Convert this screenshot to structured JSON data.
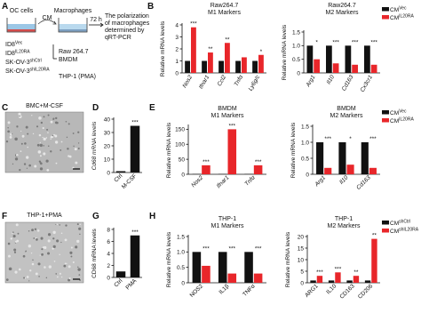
{
  "panel_labels": [
    "A",
    "B",
    "C",
    "D",
    "E",
    "F",
    "G",
    "H"
  ],
  "diagram": {
    "oc_cells": "OC cells",
    "cm": "CM",
    "macrophages": "Macrophages",
    "time": "72 h",
    "result_lines": [
      "The polarization",
      "of macrophages",
      "determined by",
      "qRT-PCR"
    ],
    "cell_lines": [
      {
        "base": "ID8",
        "sup": "Vec"
      },
      {
        "base": "ID8",
        "sup": "IL20RA"
      },
      {
        "base": "SK-OV-3",
        "sup": "shCtrl"
      },
      {
        "base": "SK-OV-3",
        "sup": "shIL20RA"
      }
    ],
    "macrophage_lines": [
      "Raw 264.7",
      "BMDM",
      "THP-1 (PMA)"
    ]
  },
  "images": [
    {
      "title": "BMC+M-CSF"
    },
    {
      "title": "THP-1+PMA"
    }
  ],
  "chart_data": [
    {
      "type": "bar",
      "title": "Raw264.7",
      "subtitle": "M1 Markers",
      "y_label": "Relative mRNA levels",
      "categories": [
        "Nos2",
        "Ifnar1",
        "Ccl2",
        "Tnfα",
        "Ly6g/c"
      ],
      "series": [
        {
          "name": "CM",
          "name_sup": "Vec",
          "color": "#111111",
          "values": [
            1,
            1,
            1,
            1,
            1
          ]
        },
        {
          "name": "CM",
          "name_sup": "IL20RA",
          "color": "#e8262a",
          "values": [
            3.8,
            1.7,
            2.5,
            1.3,
            1.5
          ]
        }
      ],
      "annotations": [
        "***",
        "**",
        "**",
        null,
        "*"
      ],
      "ylim": [
        0,
        4
      ],
      "yticks": [
        0,
        1,
        2,
        3,
        4
      ],
      "legend": false
    },
    {
      "type": "bar",
      "title": "Raw264.7",
      "subtitle": "M2 Markers",
      "y_label": "Relative mRNA levels",
      "categories": [
        "Arg1",
        "Il10",
        "Cd163",
        "Cx3cr1"
      ],
      "series": [
        {
          "name": "CM",
          "name_sup": "Vec",
          "color": "#111111",
          "values": [
            1,
            1,
            1,
            1
          ]
        },
        {
          "name": "CM",
          "name_sup": "IL20RA",
          "color": "#e8262a",
          "values": [
            0.5,
            0.35,
            0.3,
            0.3
          ]
        }
      ],
      "annotations": [
        "*",
        "***",
        "***",
        "***"
      ],
      "ylim": [
        0,
        1.5
      ],
      "yticks": [
        0,
        0.5,
        {
          "value": 1,
          "label": "1.0"
        },
        1.5
      ],
      "legend": true
    },
    {
      "type": "bar",
      "y_label": "Cd68 mRNA levels",
      "categories": [
        "Ctrl",
        "M-CSF"
      ],
      "values": [
        1,
        35
      ],
      "color": "#111111",
      "annotations": [
        null,
        "***"
      ],
      "ylim": [
        0,
        40
      ],
      "yticks": [
        0,
        10,
        20,
        30,
        40
      ],
      "legend": false
    },
    {
      "type": "bar",
      "title": "BMDM",
      "subtitle": "M1 Markers",
      "y_label": "Relative mRNA levels",
      "categories": [
        "Nos2",
        "Ifnar1",
        "Tnfα"
      ],
      "series": [
        {
          "name": "CM",
          "name_sup": "Vec",
          "color": "#111111",
          "values": [
            1,
            1,
            1
          ]
        },
        {
          "name": "CM",
          "name_sup": "IL20RA",
          "color": "#e8262a",
          "values": [
            30,
            150,
            30
          ]
        }
      ],
      "annotations": [
        "***",
        "***",
        "***"
      ],
      "ylim": [
        0,
        160
      ],
      "yticks": [
        0,
        50,
        100,
        150
      ],
      "legend": false
    },
    {
      "type": "bar",
      "title": "BMDM",
      "subtitle": "M2 Markers",
      "y_label": "Relative mRNA levels",
      "categories": [
        "Arg1",
        "Il10",
        "Cd163"
      ],
      "series": [
        {
          "name": "CM",
          "name_sup": "Vec",
          "color": "#111111",
          "values": [
            1,
            1,
            1
          ]
        },
        {
          "name": "CM",
          "name_sup": "IL20RA",
          "color": "#e8262a",
          "values": [
            0.2,
            0.3,
            0.2
          ]
        }
      ],
      "annotations": [
        "***",
        "*",
        "***"
      ],
      "ylim": [
        0,
        1.5
      ],
      "yticks": [
        0,
        0.5,
        {
          "value": 1,
          "label": "1.0"
        },
        1.5
      ],
      "legend": true
    },
    {
      "type": "bar",
      "y_label": "CD68 mRNA levels",
      "categories": [
        "Ctrl",
        "PMA"
      ],
      "values": [
        1,
        7
      ],
      "color": "#111111",
      "annotations": [
        null,
        "***"
      ],
      "ylim": [
        0,
        8
      ],
      "yticks": [
        0,
        2,
        4,
        6,
        8
      ],
      "legend": false
    },
    {
      "type": "bar",
      "title": "THP-1",
      "subtitle": "M1 Markers",
      "y_label": "Relative mRNA levels",
      "categories": [
        "NOS2",
        "IL1β",
        "TNFα"
      ],
      "series": [
        {
          "name": "CM",
          "name_sup": "shCtrl",
          "color": "#111111",
          "values": [
            1,
            1,
            1
          ]
        },
        {
          "name": "CM",
          "name_sup": "shIL20RA",
          "color": "#e8262a",
          "values": [
            0.55,
            0.3,
            0.3
          ]
        }
      ],
      "annotations": [
        "***",
        "***",
        "***"
      ],
      "ylim": [
        0,
        1.5
      ],
      "yticks": [
        0,
        0.5,
        {
          "value": 1,
          "label": "1.0"
        },
        1.5
      ],
      "legend": false
    },
    {
      "type": "bar",
      "title": "THP-1",
      "subtitle": "M2 Markers",
      "y_label": "Relative mRNA levels",
      "categories": [
        "ARG1",
        "IL10",
        "CD163",
        "CD206"
      ],
      "series": [
        {
          "name": "CM",
          "name_sup": "shCtrl",
          "color": "#111111",
          "values": [
            1,
            1,
            1,
            1
          ]
        },
        {
          "name": "CM",
          "name_sup": "shIL20RA",
          "color": "#e8262a",
          "values": [
            3,
            4.5,
            3,
            19
          ]
        }
      ],
      "annotations": [
        "***",
        "***",
        "**",
        "**"
      ],
      "ylim": [
        0,
        20
      ],
      "yticks": [
        0,
        5,
        10,
        15,
        20
      ],
      "legend": true
    }
  ]
}
